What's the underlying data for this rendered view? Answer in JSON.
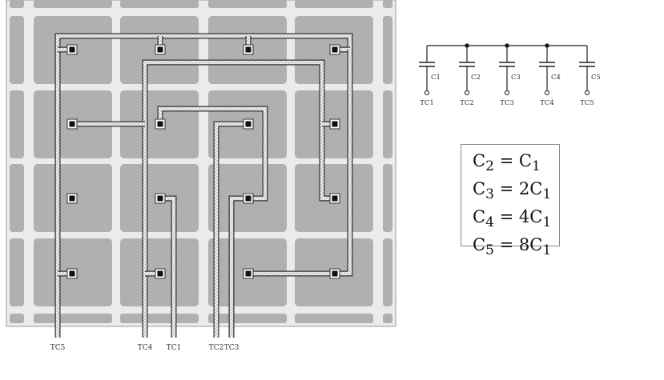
{
  "colors": {
    "cell_fill": "#b0b0b0",
    "array_frame": "#ebebeb",
    "wire_outline": "#333333",
    "wire_fill": "#f2f2f2"
  },
  "layout": {
    "bottom_labels": [
      "TC5",
      "TC4",
      "TC1",
      "TC2",
      "TC3"
    ],
    "grid": "4x4"
  },
  "schematic": {
    "capacitors": [
      {
        "name": "C1",
        "terminal": "TC1"
      },
      {
        "name": "C2",
        "terminal": "TC2"
      },
      {
        "name": "C3",
        "terminal": "TC3"
      },
      {
        "name": "C4",
        "terminal": "TC4"
      },
      {
        "name": "C5",
        "terminal": "TC5"
      }
    ]
  },
  "equations": [
    {
      "lhs": "C",
      "lhs_sub": "2",
      "rhs_coef": "",
      "rhs": "C",
      "rhs_sub": "1"
    },
    {
      "lhs": "C",
      "lhs_sub": "3",
      "rhs_coef": "2",
      "rhs": "C",
      "rhs_sub": "1"
    },
    {
      "lhs": "C",
      "lhs_sub": "4",
      "rhs_coef": "4",
      "rhs": "C",
      "rhs_sub": "1"
    },
    {
      "lhs": "C",
      "lhs_sub": "5",
      "rhs_coef": "8",
      "rhs": "C",
      "rhs_sub": "1"
    }
  ]
}
